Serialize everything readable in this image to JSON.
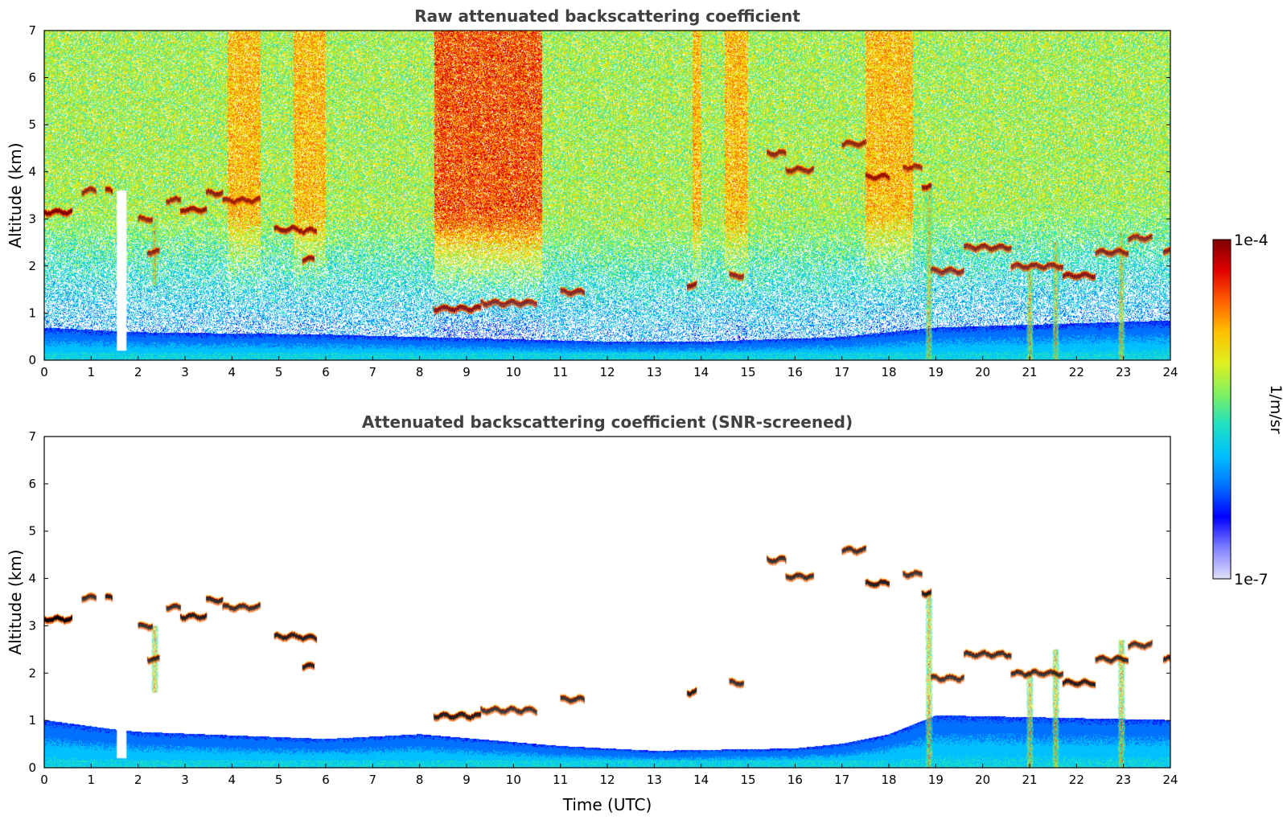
{
  "chart_data": [
    {
      "type": "heatmap",
      "title": "Raw attenuated backscattering coefficient",
      "xlabel": "",
      "ylabel": "Altitude (km)",
      "xlim": [
        0,
        24
      ],
      "ylim": [
        0,
        7
      ],
      "x_ticks": [
        "0",
        "1",
        "2",
        "3",
        "4",
        "5",
        "6",
        "7",
        "8",
        "9",
        "10",
        "11",
        "12",
        "13",
        "14",
        "15",
        "16",
        "17",
        "18",
        "19",
        "20",
        "21",
        "22",
        "23",
        "24"
      ],
      "y_ticks": [
        "0",
        "1",
        "2",
        "3",
        "4",
        "5",
        "6",
        "7"
      ],
      "boundary_layer_top_km": [
        [
          0,
          0.7
        ],
        [
          2,
          0.6
        ],
        [
          6,
          0.55
        ],
        [
          8,
          0.5
        ],
        [
          12,
          0.4
        ],
        [
          14,
          0.4
        ],
        [
          17,
          0.5
        ],
        [
          19,
          0.7
        ],
        [
          24,
          0.85
        ]
      ],
      "cloud_layers": [
        {
          "start": 0.0,
          "end": 0.6,
          "alt": 3.15
        },
        {
          "start": 0.8,
          "end": 1.1,
          "alt": 3.6
        },
        {
          "start": 1.3,
          "end": 1.45,
          "alt": 3.6
        },
        {
          "start": 2.0,
          "end": 2.3,
          "alt": 3.0
        },
        {
          "start": 2.2,
          "end": 2.45,
          "alt": 2.3
        },
        {
          "start": 2.6,
          "end": 2.9,
          "alt": 3.4
        },
        {
          "start": 2.9,
          "end": 3.45,
          "alt": 3.2
        },
        {
          "start": 3.45,
          "end": 3.8,
          "alt": 3.55
        },
        {
          "start": 3.8,
          "end": 4.6,
          "alt": 3.4
        },
        {
          "start": 4.9,
          "end": 5.5,
          "alt": 2.78
        },
        {
          "start": 5.5,
          "end": 5.8,
          "alt": 2.75
        },
        {
          "start": 5.5,
          "end": 5.75,
          "alt": 2.15
        },
        {
          "start": 8.3,
          "end": 9.3,
          "alt": 1.1
        },
        {
          "start": 9.3,
          "end": 10.5,
          "alt": 1.22
        },
        {
          "start": 11.0,
          "end": 11.5,
          "alt": 1.45
        },
        {
          "start": 13.7,
          "end": 13.9,
          "alt": 1.6
        },
        {
          "start": 14.6,
          "end": 14.9,
          "alt": 1.8
        },
        {
          "start": 15.4,
          "end": 15.8,
          "alt": 4.4
        },
        {
          "start": 15.8,
          "end": 16.4,
          "alt": 4.05
        },
        {
          "start": 17.0,
          "end": 17.5,
          "alt": 4.6
        },
        {
          "start": 17.5,
          "end": 18.0,
          "alt": 3.9
        },
        {
          "start": 18.3,
          "end": 18.7,
          "alt": 4.1
        },
        {
          "start": 18.7,
          "end": 18.9,
          "alt": 3.7
        },
        {
          "start": 18.9,
          "end": 19.6,
          "alt": 1.9
        },
        {
          "start": 19.6,
          "end": 20.6,
          "alt": 2.4
        },
        {
          "start": 20.6,
          "end": 21.7,
          "alt": 2.0
        },
        {
          "start": 21.7,
          "end": 22.4,
          "alt": 1.8
        },
        {
          "start": 22.4,
          "end": 23.1,
          "alt": 2.3
        },
        {
          "start": 23.1,
          "end": 23.6,
          "alt": 2.6
        },
        {
          "start": 23.85,
          "end": 24.0,
          "alt": 2.3
        }
      ],
      "precipitation_shafts": [
        {
          "x": 1.65,
          "kind": "gap",
          "top": 3.6
        },
        {
          "x": 2.35,
          "kind": "fall",
          "top": 3.0,
          "bottom": 1.6
        },
        {
          "x": 18.85,
          "kind": "fall",
          "top": 3.7,
          "bottom": 0.0
        },
        {
          "x": 21.0,
          "kind": "fall",
          "top": 2.0,
          "bottom": 0.0
        },
        {
          "x": 21.55,
          "kind": "fall",
          "top": 2.5,
          "bottom": 0.0
        },
        {
          "x": 22.95,
          "kind": "fall",
          "top": 2.7,
          "bottom": 0.0
        }
      ]
    },
    {
      "type": "heatmap",
      "title": "Attenuated backscattering coefficient (SNR-screened)",
      "xlabel": "Time (UTC)",
      "ylabel": "Altitude (km)",
      "xlim": [
        0,
        24
      ],
      "ylim": [
        0,
        7
      ],
      "x_ticks": [
        "0",
        "1",
        "2",
        "3",
        "4",
        "5",
        "6",
        "7",
        "8",
        "9",
        "10",
        "11",
        "12",
        "13",
        "14",
        "15",
        "16",
        "17",
        "18",
        "19",
        "20",
        "21",
        "22",
        "23",
        "24"
      ],
      "y_ticks": [
        "0",
        "1",
        "2",
        "3",
        "4",
        "5",
        "6",
        "7"
      ],
      "screened_boundary_layer_km": [
        [
          0,
          1.0
        ],
        [
          1.5,
          0.8
        ],
        [
          2,
          0.75
        ],
        [
          6,
          0.6
        ],
        [
          8,
          0.7
        ],
        [
          11,
          0.45
        ],
        [
          13,
          0.35
        ],
        [
          16,
          0.4
        ],
        [
          17,
          0.5
        ],
        [
          18,
          0.7
        ],
        [
          19,
          1.1
        ],
        [
          24,
          1.0
        ]
      ],
      "colorbar": {
        "label": "1/m/sr",
        "min_label": "1e-7",
        "max_label": "1e-4",
        "scale": "log",
        "colors": [
          "#e0e0f8",
          "#8080ff",
          "#0000ff",
          "#0070ff",
          "#00c0ff",
          "#20e0c0",
          "#80f060",
          "#e0f020",
          "#ffc000",
          "#ff6000",
          "#e00000",
          "#800000"
        ]
      }
    }
  ]
}
